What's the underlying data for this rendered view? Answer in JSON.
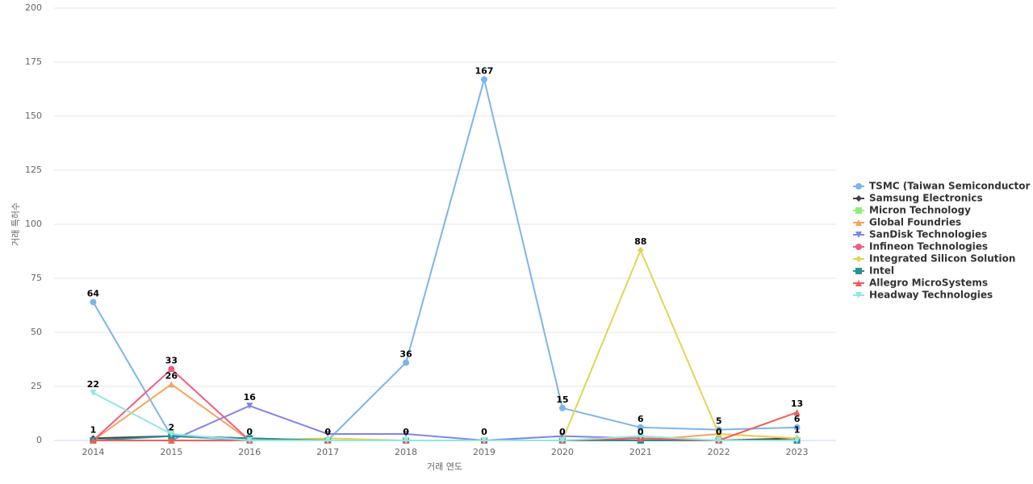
{
  "chart_data": {
    "type": "line",
    "y_label": "거래 특허수",
    "x_label": "거래 연도",
    "categories": [
      "2014",
      "2015",
      "2016",
      "2017",
      "2018",
      "2019",
      "2020",
      "2021",
      "2022",
      "2023"
    ],
    "ylim": [
      0,
      200
    ],
    "yticks": [
      0,
      25,
      50,
      75,
      100,
      125,
      150,
      175,
      200
    ],
    "grid": true,
    "legend": "right",
    "series": [
      {
        "name": "TSMC (Taiwan Semiconductor ...",
        "color": "#7cb5ec",
        "marker": "circle",
        "values": [
          64,
          2,
          0,
          0,
          36,
          167,
          15,
          6,
          5,
          6
        ],
        "value_labels": [
          "64",
          null,
          null,
          null,
          "36",
          "167",
          "15",
          "6",
          "5",
          "6"
        ]
      },
      {
        "name": "Samsung Electronics",
        "color": "#434348",
        "marker": "diamond",
        "values": [
          1,
          2,
          1,
          0,
          0,
          0,
          0,
          0,
          0,
          1
        ],
        "value_labels": [
          "1",
          "2",
          null,
          null,
          null,
          null,
          null,
          null,
          null,
          "1"
        ]
      },
      {
        "name": "Micron Technology",
        "color": "#90ed7d",
        "marker": "square",
        "values": [
          0,
          0,
          0,
          0,
          0,
          0,
          0,
          0,
          0,
          0
        ],
        "value_labels": [
          null,
          null,
          "0",
          "0",
          "0",
          "0",
          "0",
          "0",
          "0",
          null
        ]
      },
      {
        "name": "Global Foundries",
        "color": "#f7a35c",
        "marker": "triangle",
        "values": [
          0,
          26,
          0,
          0,
          0,
          0,
          0,
          0,
          3,
          1
        ],
        "value_labels": [
          null,
          "26",
          null,
          null,
          null,
          null,
          null,
          null,
          null,
          null
        ]
      },
      {
        "name": "SanDisk Technologies",
        "color": "#8085e9",
        "marker": "triangle-down",
        "values": [
          0,
          0,
          16,
          3,
          3,
          0,
          2,
          1,
          0,
          0
        ],
        "value_labels": [
          null,
          null,
          "16",
          null,
          null,
          null,
          null,
          null,
          null,
          null
        ]
      },
      {
        "name": "Infineon Technologies",
        "color": "#f15c80",
        "marker": "circle",
        "values": [
          0,
          33,
          0,
          0,
          0,
          0,
          0,
          0,
          0,
          0
        ],
        "value_labels": [
          null,
          "33",
          null,
          null,
          null,
          null,
          null,
          null,
          null,
          null
        ]
      },
      {
        "name": "Integrated Silicon Solution",
        "color": "#e4d354",
        "marker": "diamond",
        "values": [
          0,
          0,
          0,
          1,
          0,
          0,
          0,
          88,
          3,
          1
        ],
        "value_labels": [
          null,
          null,
          null,
          null,
          null,
          null,
          null,
          "88",
          null,
          null
        ]
      },
      {
        "name": "Intel",
        "color": "#2b908f",
        "marker": "square",
        "values": [
          0,
          2,
          1,
          0,
          0,
          0,
          0,
          0,
          0,
          0
        ],
        "value_labels": [
          null,
          null,
          null,
          null,
          null,
          null,
          null,
          null,
          null,
          null
        ]
      },
      {
        "name": "Allegro MicroSystems",
        "color": "#f45b5b",
        "marker": "triangle",
        "values": [
          0,
          0,
          0,
          0,
          0,
          0,
          0,
          1,
          0,
          13
        ],
        "value_labels": [
          null,
          null,
          null,
          null,
          null,
          null,
          null,
          null,
          null,
          "13"
        ]
      },
      {
        "name": "Headway Technologies",
        "color": "#91e8e1",
        "marker": "triangle-down",
        "values": [
          22,
          3,
          0,
          0,
          0,
          0,
          0,
          2,
          0,
          0
        ],
        "value_labels": [
          "22",
          null,
          null,
          null,
          null,
          null,
          null,
          null,
          null,
          null
        ]
      }
    ]
  }
}
